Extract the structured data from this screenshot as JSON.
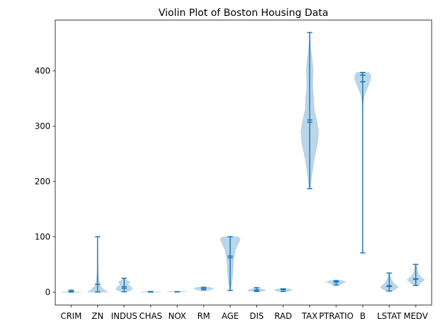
{
  "chart_data": {
    "type": "violin",
    "title": "Violin Plot of Boston Housing Data",
    "xlabel": "",
    "ylabel": "",
    "ylim": [
      -23.4,
      491.5
    ],
    "yticks": [
      0,
      100,
      200,
      300,
      400
    ],
    "grid": false,
    "colors": {
      "body": "#1f77b4",
      "body_alpha": 0.3,
      "lines": "#1f77b4",
      "axes": "#000000"
    },
    "categories": [
      "CRIM",
      "ZN",
      "INDUS",
      "CHAS",
      "NOX",
      "RM",
      "AGE",
      "DIS",
      "RAD",
      "TAX",
      "PTRATIO",
      "B",
      "LSTAT",
      "MEDV"
    ],
    "series": [
      {
        "name": "CRIM",
        "min": 0.006,
        "max": 3.5,
        "mean": 1.0,
        "median": 0.26,
        "density": [
          [
            0.006,
            1.0
          ],
          [
            0.5,
            0.55
          ],
          [
            1.5,
            0.2
          ],
          [
            3.5,
            0.02
          ]
        ]
      },
      {
        "name": "ZN",
        "min": 0.0,
        "max": 100.0,
        "mean": 14.0,
        "median": 0.0,
        "density": [
          [
            0,
            1.0
          ],
          [
            5,
            0.6
          ],
          [
            12,
            0.25
          ],
          [
            20,
            0.12
          ],
          [
            35,
            0.06
          ],
          [
            60,
            0.03
          ],
          [
            80,
            0.03
          ],
          [
            100,
            0.01
          ]
        ]
      },
      {
        "name": "INDUS",
        "min": 0.46,
        "max": 25.0,
        "mean": 9.7,
        "median": 7.0,
        "density": [
          [
            0.46,
            0.25
          ],
          [
            4,
            0.75
          ],
          [
            7,
            0.85
          ],
          [
            10,
            0.6
          ],
          [
            14,
            0.4
          ],
          [
            18,
            0.6
          ],
          [
            21,
            0.3
          ],
          [
            25,
            0.05
          ]
        ]
      },
      {
        "name": "CHAS",
        "min": 0.0,
        "max": 1.0,
        "mean": 0.07,
        "median": 0.0,
        "density": [
          [
            0,
            1.0
          ],
          [
            0.5,
            0.6
          ],
          [
            1,
            0.2
          ]
        ]
      },
      {
        "name": "NOX",
        "min": 0.385,
        "max": 0.871,
        "mean": 0.55,
        "median": 0.538,
        "density": [
          [
            0.385,
            0.5
          ],
          [
            0.55,
            1.0
          ],
          [
            0.871,
            0.4
          ]
        ]
      },
      {
        "name": "RM",
        "min": 3.56,
        "max": 8.78,
        "mean": 6.28,
        "median": 6.2,
        "density": [
          [
            3.56,
            0.6
          ],
          [
            6.2,
            1.0
          ],
          [
            8.78,
            0.6
          ]
        ]
      },
      {
        "name": "AGE",
        "min": 2.9,
        "max": 100.0,
        "mean": 65.0,
        "median": 62.0,
        "density": [
          [
            2.9,
            0.05
          ],
          [
            15,
            0.15
          ],
          [
            30,
            0.25
          ],
          [
            45,
            0.3
          ],
          [
            60,
            0.35
          ],
          [
            75,
            0.5
          ],
          [
            85,
            0.75
          ],
          [
            93,
            0.95
          ],
          [
            97,
            1.0
          ],
          [
            100,
            0.7
          ]
        ]
      },
      {
        "name": "DIS",
        "min": 1.13,
        "max": 8.0,
        "mean": 3.8,
        "median": 3.2,
        "density": [
          [
            1.13,
            0.4
          ],
          [
            2.5,
            0.9
          ],
          [
            4,
            0.8
          ],
          [
            6,
            0.4
          ],
          [
            8,
            0.1
          ]
        ]
      },
      {
        "name": "RAD",
        "min": 1.0,
        "max": 6.0,
        "mean": 4.3,
        "median": 5.0,
        "density": [
          [
            1,
            0.5
          ],
          [
            4,
            0.9
          ],
          [
            6,
            0.5
          ]
        ]
      },
      {
        "name": "TAX",
        "min": 187.0,
        "max": 469.0,
        "mean": 311.0,
        "median": 307.0,
        "density": [
          [
            187,
            0.05
          ],
          [
            210,
            0.2
          ],
          [
            240,
            0.45
          ],
          [
            270,
            0.8
          ],
          [
            290,
            0.9
          ],
          [
            310,
            0.7
          ],
          [
            330,
            0.45
          ],
          [
            350,
            0.4
          ],
          [
            370,
            0.3
          ],
          [
            385,
            0.3
          ],
          [
            400,
            0.35
          ],
          [
            420,
            0.25
          ],
          [
            440,
            0.1
          ],
          [
            469,
            0.02
          ]
        ]
      },
      {
        "name": "PTRATIO",
        "min": 12.6,
        "max": 21.0,
        "mean": 18.0,
        "median": 18.7,
        "density": [
          [
            12.6,
            0.3
          ],
          [
            17,
            0.8
          ],
          [
            18.7,
            1.0
          ],
          [
            21,
            0.5
          ]
        ]
      },
      {
        "name": "B",
        "min": 70.8,
        "max": 396.9,
        "mean": 380.0,
        "median": 392.0,
        "density": [
          [
            70.8,
            0.0
          ],
          [
            300,
            0.0
          ],
          [
            340,
            0.04
          ],
          [
            355,
            0.15
          ],
          [
            370,
            0.5
          ],
          [
            385,
            0.8
          ],
          [
            392,
            0.8
          ],
          [
            396.9,
            0.6
          ]
        ]
      },
      {
        "name": "LSTAT",
        "min": 1.73,
        "max": 34.4,
        "mean": 11.5,
        "median": 10.0,
        "density": [
          [
            1.73,
            0.3
          ],
          [
            5,
            0.6
          ],
          [
            8,
            0.9
          ],
          [
            11,
            0.8
          ],
          [
            15,
            0.5
          ],
          [
            20,
            0.3
          ],
          [
            27,
            0.12
          ],
          [
            34.4,
            0.03
          ]
        ]
      },
      {
        "name": "MEDV",
        "min": 11.9,
        "max": 50.0,
        "mean": 24.0,
        "median": 23.0,
        "density": [
          [
            11.9,
            0.2
          ],
          [
            18,
            0.6
          ],
          [
            22,
            0.9
          ],
          [
            25,
            0.7
          ],
          [
            30,
            0.4
          ],
          [
            36,
            0.2
          ],
          [
            42,
            0.12
          ],
          [
            50,
            0.06
          ]
        ]
      }
    ]
  }
}
